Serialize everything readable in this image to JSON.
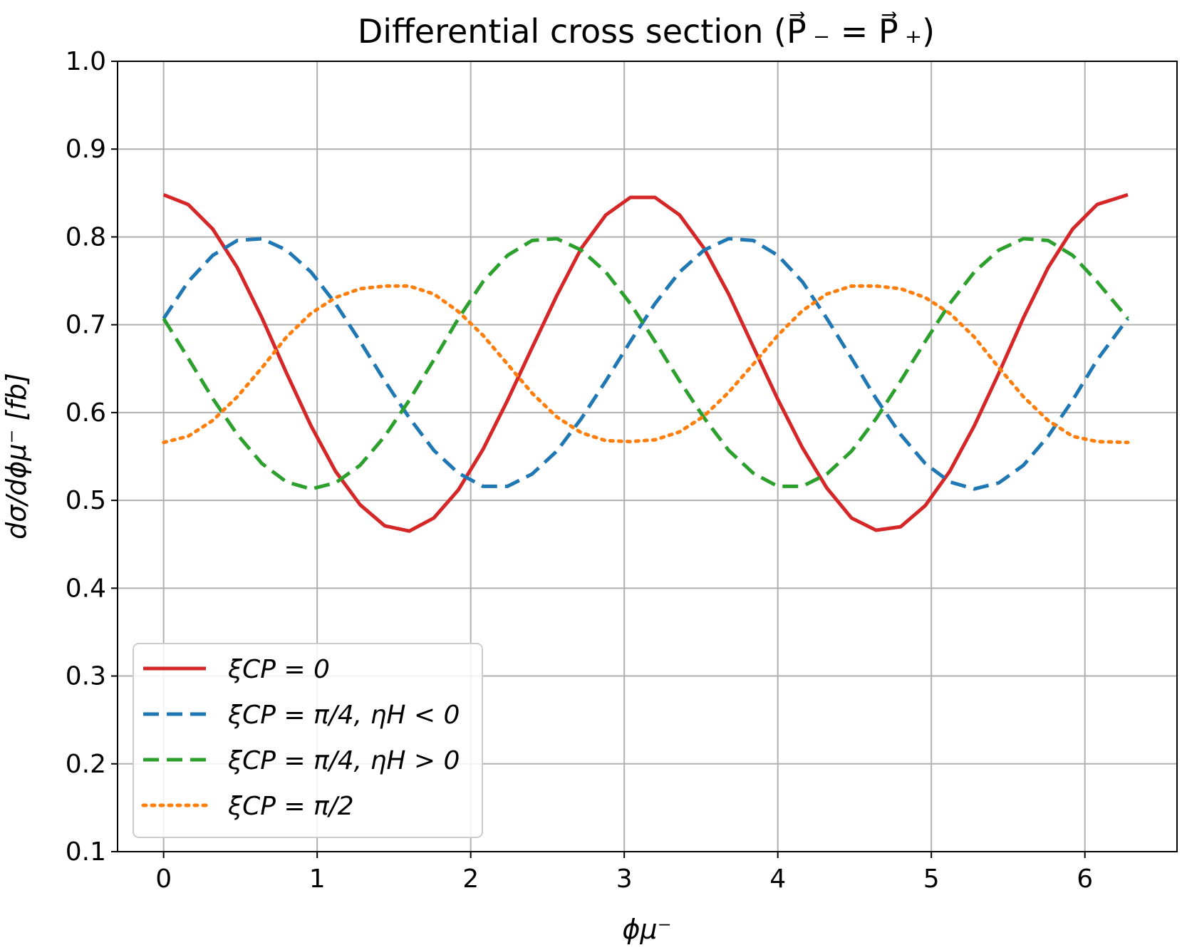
{
  "chart_data": {
    "type": "line",
    "title": "Differential cross section (P⃗ ₋ = P⃗ ₊)",
    "xlabel": "ϕμ⁻",
    "ylabel": "dσ/dϕμ⁻  [fb]",
    "xlim": [
      -0.3,
      6.6
    ],
    "ylim": [
      0.1,
      1.0
    ],
    "xticks": [
      0,
      1,
      2,
      3,
      4,
      5,
      6
    ],
    "xtick_labels": [
      "0",
      "1",
      "2",
      "3",
      "4",
      "5",
      "6"
    ],
    "yticks": [
      0.1,
      0.2,
      0.3,
      0.4,
      0.5,
      0.6,
      0.7,
      0.8,
      0.9,
      1.0
    ],
    "ytick_labels": [
      "0.1",
      "0.2",
      "0.3",
      "0.4",
      "0.5",
      "0.6",
      "0.7",
      "0.8",
      "0.9",
      "1.0"
    ],
    "grid": true,
    "legend_position": "lower-left",
    "series": [
      {
        "name": "ξCP = 0",
        "color": "#d62728",
        "dash": "solid",
        "x": [
          0.0,
          0.16,
          0.32,
          0.48,
          0.64,
          0.8,
          0.96,
          1.12,
          1.28,
          1.44,
          1.6,
          1.76,
          1.92,
          2.08,
          2.24,
          2.4,
          2.56,
          2.72,
          2.88,
          3.04,
          3.2,
          3.36,
          3.52,
          3.68,
          3.84,
          4.0,
          4.16,
          4.32,
          4.48,
          4.64,
          4.8,
          4.96,
          5.12,
          5.28,
          5.44,
          5.6,
          5.76,
          5.92,
          6.08,
          6.28
        ],
        "y": [
          0.848,
          0.837,
          0.809,
          0.765,
          0.708,
          0.645,
          0.585,
          0.533,
          0.495,
          0.471,
          0.465,
          0.48,
          0.512,
          0.558,
          0.614,
          0.674,
          0.733,
          0.787,
          0.825,
          0.845,
          0.845,
          0.825,
          0.787,
          0.735,
          0.675,
          0.615,
          0.56,
          0.514,
          0.48,
          0.466,
          0.47,
          0.494,
          0.533,
          0.585,
          0.645,
          0.708,
          0.765,
          0.809,
          0.837,
          0.848
        ]
      },
      {
        "name": "ξCP = π/4,  ηH < 0",
        "color": "#1f77b4",
        "dash": "dashed",
        "x": [
          0.0,
          0.16,
          0.32,
          0.48,
          0.64,
          0.8,
          0.96,
          1.12,
          1.28,
          1.44,
          1.6,
          1.76,
          1.92,
          2.08,
          2.24,
          2.4,
          2.56,
          2.72,
          2.88,
          3.04,
          3.2,
          3.36,
          3.52,
          3.68,
          3.84,
          4.0,
          4.16,
          4.32,
          4.48,
          4.64,
          4.8,
          4.96,
          5.12,
          5.28,
          5.44,
          5.6,
          5.76,
          5.92,
          6.08,
          6.28
        ],
        "y": [
          0.707,
          0.749,
          0.779,
          0.796,
          0.798,
          0.785,
          0.76,
          0.724,
          0.681,
          0.636,
          0.594,
          0.557,
          0.531,
          0.516,
          0.516,
          0.53,
          0.556,
          0.593,
          0.636,
          0.681,
          0.724,
          0.76,
          0.785,
          0.798,
          0.796,
          0.779,
          0.749,
          0.707,
          0.662,
          0.616,
          0.575,
          0.542,
          0.521,
          0.513,
          0.52,
          0.54,
          0.573,
          0.614,
          0.66,
          0.707
        ]
      },
      {
        "name": "ξCP = π/4,  ηH > 0",
        "color": "#2ca02c",
        "dash": "dashed",
        "x": [
          0.0,
          0.16,
          0.32,
          0.48,
          0.64,
          0.8,
          0.96,
          1.12,
          1.28,
          1.44,
          1.6,
          1.76,
          1.92,
          2.08,
          2.24,
          2.4,
          2.56,
          2.72,
          2.88,
          3.04,
          3.2,
          3.36,
          3.52,
          3.68,
          3.84,
          4.0,
          4.16,
          4.32,
          4.48,
          4.64,
          4.8,
          4.96,
          5.12,
          5.28,
          5.44,
          5.6,
          5.76,
          5.92,
          6.08,
          6.28
        ],
        "y": [
          0.707,
          0.662,
          0.616,
          0.575,
          0.542,
          0.521,
          0.513,
          0.52,
          0.54,
          0.573,
          0.614,
          0.66,
          0.707,
          0.749,
          0.779,
          0.796,
          0.798,
          0.785,
          0.76,
          0.724,
          0.681,
          0.636,
          0.594,
          0.557,
          0.531,
          0.516,
          0.516,
          0.53,
          0.556,
          0.593,
          0.636,
          0.681,
          0.724,
          0.76,
          0.785,
          0.798,
          0.796,
          0.779,
          0.749,
          0.707
        ]
      },
      {
        "name": "ξCP = π/2",
        "color": "#ff7f0e",
        "dash": "dotted",
        "x": [
          0.0,
          0.16,
          0.32,
          0.48,
          0.64,
          0.8,
          0.96,
          1.12,
          1.28,
          1.44,
          1.6,
          1.76,
          1.92,
          2.08,
          2.24,
          2.4,
          2.56,
          2.72,
          2.88,
          3.04,
          3.2,
          3.36,
          3.52,
          3.68,
          3.84,
          4.0,
          4.16,
          4.32,
          4.48,
          4.64,
          4.8,
          4.96,
          5.12,
          5.28,
          5.44,
          5.6,
          5.76,
          5.92,
          6.08,
          6.28
        ],
        "y": [
          0.566,
          0.573,
          0.591,
          0.618,
          0.651,
          0.686,
          0.713,
          0.731,
          0.741,
          0.744,
          0.744,
          0.735,
          0.715,
          0.688,
          0.655,
          0.622,
          0.595,
          0.577,
          0.568,
          0.567,
          0.569,
          0.578,
          0.596,
          0.623,
          0.655,
          0.688,
          0.716,
          0.735,
          0.744,
          0.744,
          0.741,
          0.731,
          0.713,
          0.686,
          0.651,
          0.618,
          0.591,
          0.573,
          0.567,
          0.566
        ]
      }
    ]
  }
}
